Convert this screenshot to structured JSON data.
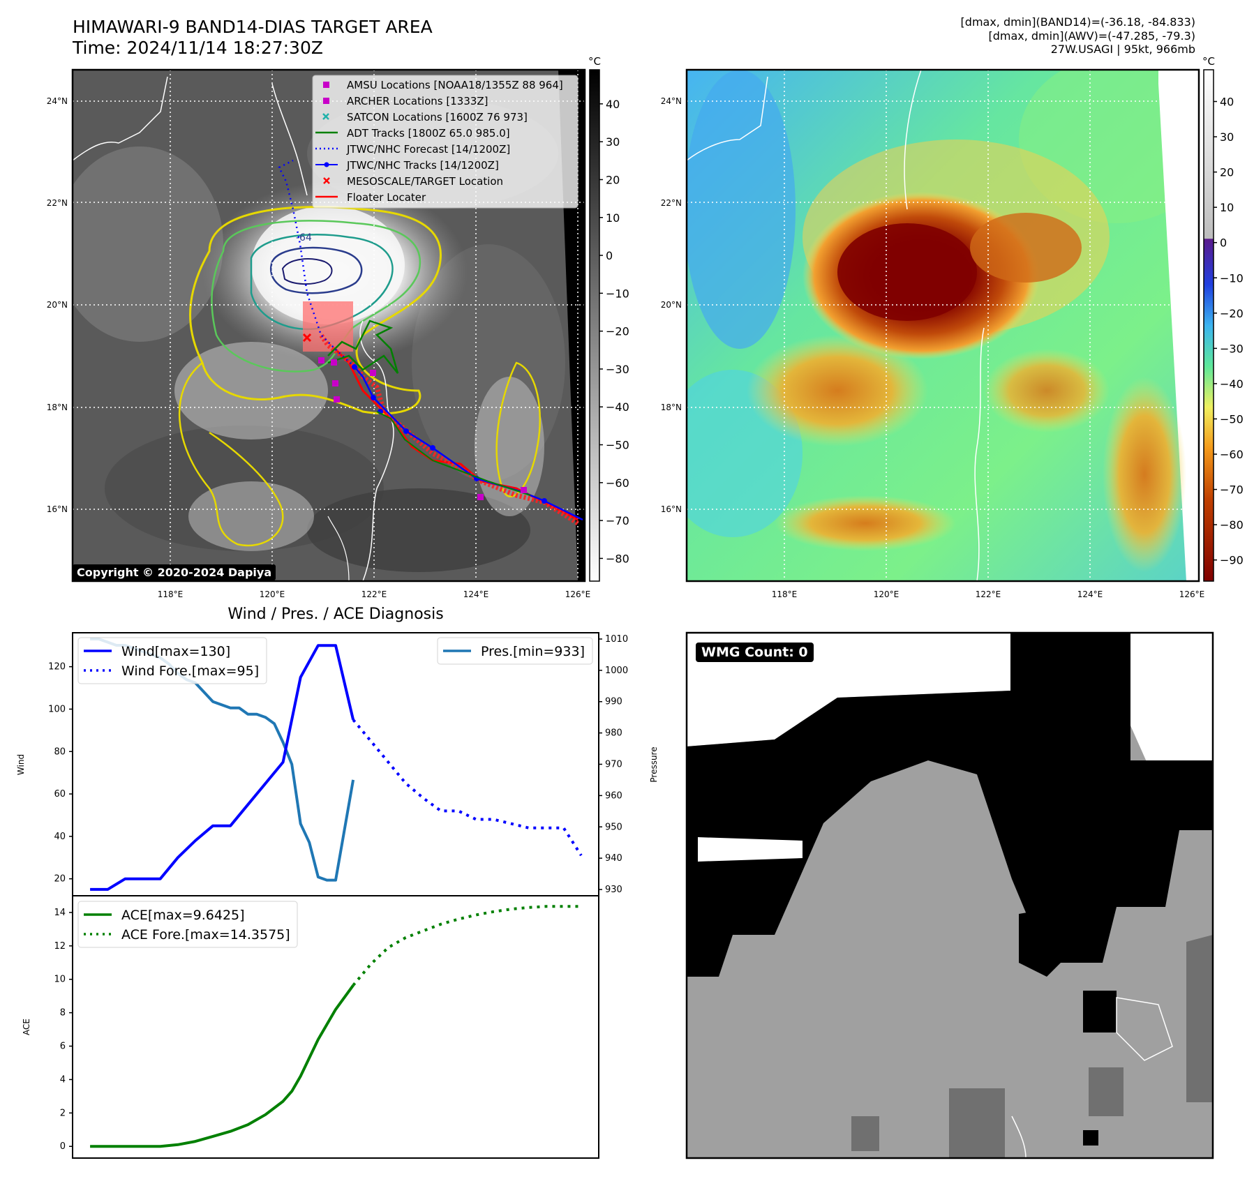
{
  "header": {
    "title_line1": "HIMAWARI-9 BAND14-DIAS TARGET AREA",
    "title_line2": "Time: 2024/11/14 18:27:30Z",
    "stats_line1": "[dmax, dmin](BAND14)=(-36.18, -84.833)",
    "stats_line2": "[dmax, dmin](AWV)=(-47.285, -79.3)",
    "stats_line3": "27W.USAGI | 95kt, 966mb"
  },
  "map_axes": {
    "lat_labels": [
      "24°N",
      "22°N",
      "20°N",
      "18°N",
      "16°N"
    ],
    "lon_labels": [
      "118°E",
      "120°E",
      "122°E",
      "124°E",
      "126°E"
    ]
  },
  "ir_panel": {
    "copyright": "Copyright © 2020-2024 Dapiya",
    "colorbar_unit": "°C",
    "colorbar_ticks": [
      "40",
      "30",
      "20",
      "10",
      "0",
      "−10",
      "−20",
      "−30",
      "−40",
      "−50",
      "−60",
      "−70",
      "−80"
    ],
    "contour_label": "-64",
    "legend": [
      {
        "label": "AMSU Locations [NOAA18/1355Z 88 964]",
        "color": "#c800c8",
        "icon": "square-marker-icon"
      },
      {
        "label": "ARCHER Locations [1333Z]",
        "color": "#c800c8",
        "icon": "square-marker-icon"
      },
      {
        "label": "SATCON Locations [1600Z 76 973]",
        "color": "#20b2aa",
        "icon": "x-marker-icon"
      },
      {
        "label": "ADT Tracks [1800Z 65.0 985.0]",
        "color": "#008000",
        "icon": "solid-line-icon"
      },
      {
        "label": "JTWC/NHC Forecast [14/1200Z]",
        "color": "#0000ff",
        "icon": "dotted-line-icon"
      },
      {
        "label": "JTWC/NHC Tracks [14/1200Z]",
        "color": "#0000ff",
        "icon": "line-dot-icon"
      },
      {
        "label": "MESOSCALE/TARGET Location",
        "color": "#ff0000",
        "icon": "x-marker-icon"
      },
      {
        "label": "Floater Locater",
        "color": "#ff0000",
        "icon": "solid-line-icon"
      }
    ]
  },
  "awv_panel": {
    "colorbar_unit": "°C",
    "colorbar_ticks": [
      "40",
      "30",
      "20",
      "10",
      "0",
      "−10",
      "−20",
      "−30",
      "−40",
      "−50",
      "−60",
      "−70",
      "−80",
      "−90"
    ]
  },
  "wmg_panel": {
    "count_label": "WMG Count: 0"
  },
  "chart_data": [
    {
      "type": "line",
      "title": "Wind / Pres. / ACE Diagnosis",
      "ylabel": "Wind",
      "y2label": "Pressure",
      "ylim": [
        12,
        136
      ],
      "y2lim": [
        928,
        1012
      ],
      "yticks": [
        20,
        40,
        60,
        80,
        100,
        120
      ],
      "y2ticks": [
        930,
        940,
        950,
        960,
        970,
        980,
        990,
        1000,
        1010
      ],
      "xlim": [
        -1,
        29
      ],
      "series": [
        {
          "name": "Wind[max=130]",
          "color": "#0000ff",
          "style": "solid",
          "x": [
            0,
            1,
            2,
            3,
            4,
            5,
            6,
            7,
            8,
            9,
            10,
            11,
            12,
            13,
            14,
            15
          ],
          "values": [
            15,
            15,
            20,
            20,
            20,
            30,
            38,
            45,
            45,
            55,
            65,
            75,
            115,
            130,
            130,
            95
          ]
        },
        {
          "name": "Wind Fore.[max=95]",
          "color": "#0000ff",
          "style": "dotted",
          "x": [
            15,
            16,
            17,
            18,
            19,
            20,
            21,
            22,
            23,
            24,
            25,
            26,
            27,
            28
          ],
          "values": [
            95,
            85,
            75,
            65,
            58,
            52,
            52,
            48,
            48,
            46,
            44,
            44,
            44,
            31
          ]
        },
        {
          "name": "Pres.[min=933]",
          "color": "#1f77b4",
          "style": "solid",
          "axis": "right",
          "x": [
            0,
            0.5,
            1,
            1.5,
            2,
            2.5,
            3,
            3.5,
            4,
            4.5,
            5,
            5.5,
            6,
            6.5,
            7,
            7.5,
            8,
            8.5,
            9,
            9.5,
            10,
            10.5,
            11,
            11.5,
            12,
            12.5,
            13,
            13.5,
            14,
            15
          ],
          "values": [
            1010,
            1010,
            1009,
            1008,
            1008,
            1007,
            1006,
            1005,
            1004,
            1002,
            999,
            997,
            996,
            993,
            990,
            989,
            988,
            988,
            986,
            986,
            985,
            983,
            977,
            970,
            951,
            945,
            934,
            933,
            933,
            965
          ]
        }
      ],
      "legend_left": [
        "Wind[max=130]",
        "Wind Fore.[max=95]"
      ],
      "legend_right": [
        "Pres.[min=933]"
      ]
    },
    {
      "type": "line",
      "ylabel": "ACE",
      "ylim": [
        -0.7,
        15
      ],
      "yticks": [
        0,
        2,
        4,
        6,
        8,
        10,
        12,
        14
      ],
      "xlim": [
        -1,
        29
      ],
      "series": [
        {
          "name": "ACE[max=9.6425]",
          "color": "#008000",
          "style": "solid",
          "x": [
            0,
            1,
            2,
            3,
            4,
            5,
            6,
            7,
            8,
            9,
            10,
            11,
            11.5,
            12,
            13,
            14,
            15
          ],
          "values": [
            0,
            0,
            0,
            0,
            0,
            0.1,
            0.3,
            0.6,
            0.9,
            1.3,
            1.9,
            2.7,
            3.3,
            4.2,
            6.4,
            8.2,
            9.64
          ]
        },
        {
          "name": "ACE Fore.[max=14.3575]",
          "color": "#008000",
          "style": "dotted",
          "x": [
            15,
            16,
            17,
            18,
            19,
            20,
            21,
            22,
            23,
            24,
            25,
            26,
            27,
            28
          ],
          "values": [
            9.64,
            10.9,
            11.9,
            12.5,
            12.9,
            13.3,
            13.6,
            13.85,
            14.05,
            14.2,
            14.3,
            14.36,
            14.36,
            14.36
          ]
        }
      ],
      "legend": [
        "ACE[max=9.6425]",
        "ACE Fore.[max=14.3575]"
      ]
    }
  ]
}
